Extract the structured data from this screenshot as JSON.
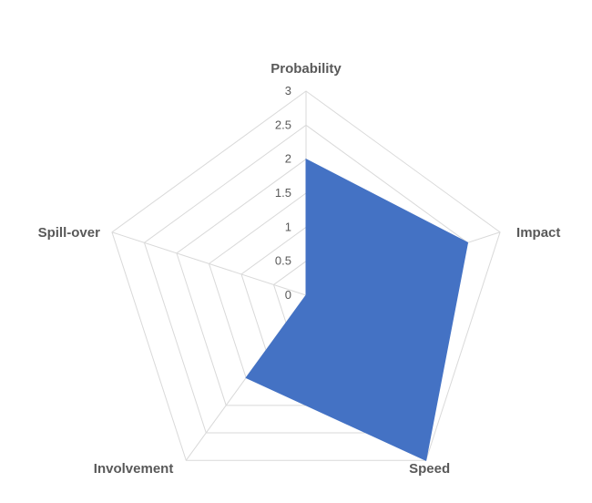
{
  "chart_data": {
    "type": "radar",
    "categories": [
      "Probability",
      "Impact",
      "Speed",
      "Involvement",
      "Spill-over"
    ],
    "series": [
      {
        "values": [
          2,
          2.5,
          3,
          1.5,
          0
        ],
        "color": "#4472C4"
      }
    ],
    "r_ticks": [
      "0",
      "0.5",
      "1",
      "1.5",
      "2",
      "2.5",
      "3"
    ],
    "rlim": [
      0,
      3
    ],
    "grid": true,
    "legend": "none",
    "grid_color": "#d9d9d9",
    "text_color": "#595959"
  }
}
